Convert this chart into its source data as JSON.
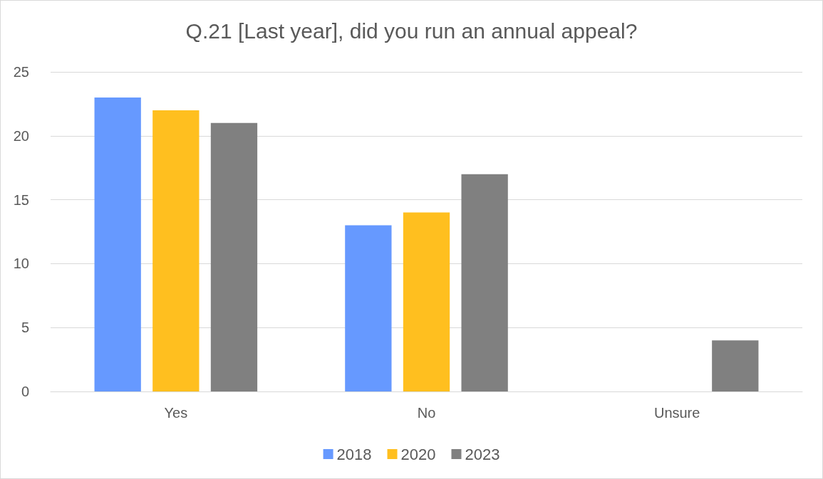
{
  "chart_data": {
    "type": "bar",
    "title": "Q.21 [Last year], did you run an annual appeal?",
    "categories": [
      "Yes",
      "No",
      "Unsure"
    ],
    "series": [
      {
        "name": "2018",
        "color": "#6699ff",
        "values": [
          23,
          13,
          0
        ]
      },
      {
        "name": "2020",
        "color": "#ffbf1f",
        "values": [
          22,
          14,
          0
        ]
      },
      {
        "name": "2023",
        "color": "#808080",
        "values": [
          21,
          17,
          4
        ]
      }
    ],
    "ylim": [
      0,
      25
    ],
    "yticks": [
      0,
      5,
      10,
      15,
      20,
      25
    ],
    "grid": "y",
    "legend": "bottom"
  }
}
